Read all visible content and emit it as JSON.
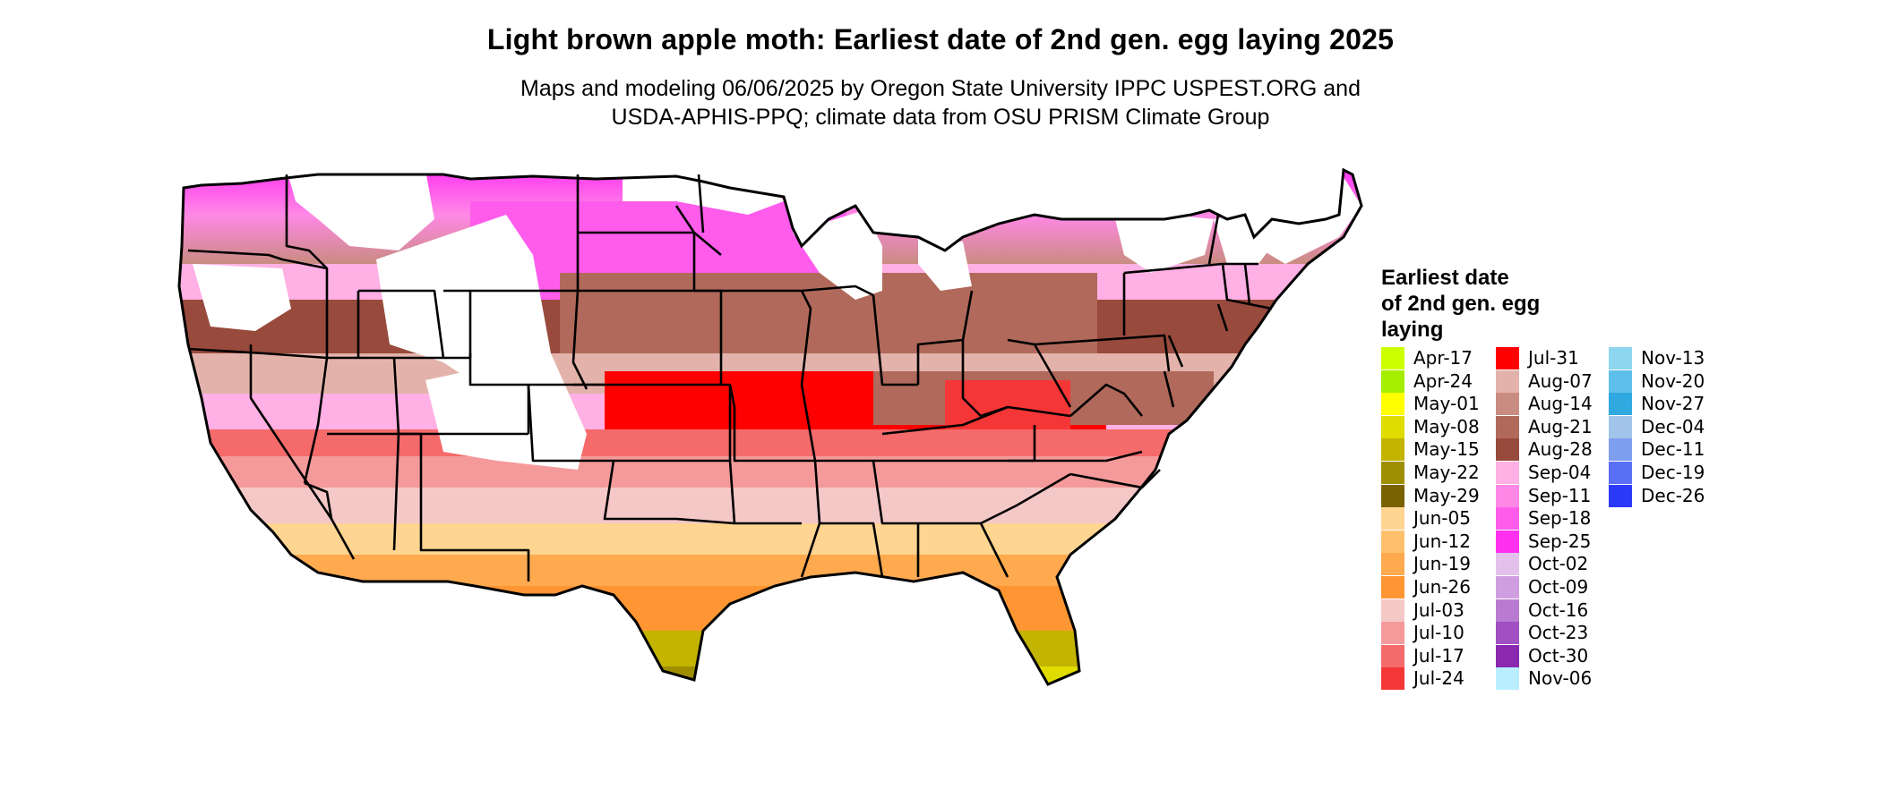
{
  "title": "Light brown apple moth: Earliest date of 2nd gen. egg laying 2025",
  "subtitle_line1": "Maps and modeling 06/06/2025 by Oregon State University IPPC USPEST.ORG and",
  "subtitle_line2": "USDA-APHIS-PPQ; climate data from OSU PRISM Climate Group",
  "legend": {
    "title_lines": [
      "Earliest date",
      "of 2nd gen. egg",
      "laying"
    ],
    "entries": [
      {
        "label": "Apr-17",
        "color": "#ccff00"
      },
      {
        "label": "Apr-24",
        "color": "#a6ee00"
      },
      {
        "label": "May-01",
        "color": "#ffff00"
      },
      {
        "label": "May-08",
        "color": "#e0dc00"
      },
      {
        "label": "May-15",
        "color": "#c2b400"
      },
      {
        "label": "May-22",
        "color": "#9e8e00"
      },
      {
        "label": "May-29",
        "color": "#7a6200"
      },
      {
        "label": "Jun-05",
        "color": "#ffd591"
      },
      {
        "label": "Jun-12",
        "color": "#ffc06e"
      },
      {
        "label": "Jun-19",
        "color": "#ffaa4f"
      },
      {
        "label": "Jun-26",
        "color": "#ff9633"
      },
      {
        "label": "Jul-03",
        "color": "#f5c8c8"
      },
      {
        "label": "Jul-10",
        "color": "#f59a9a"
      },
      {
        "label": "Jul-17",
        "color": "#f56a6a"
      },
      {
        "label": "Jul-24",
        "color": "#f53636"
      },
      {
        "label": "Jul-31",
        "color": "#ff0000"
      },
      {
        "label": "Aug-07",
        "color": "#e3b3ab"
      },
      {
        "label": "Aug-14",
        "color": "#c98c80"
      },
      {
        "label": "Aug-21",
        "color": "#b0695b"
      },
      {
        "label": "Aug-28",
        "color": "#984a3c"
      },
      {
        "label": "Sep-04",
        "color": "#ffb0e4"
      },
      {
        "label": "Sep-11",
        "color": "#ff88e6"
      },
      {
        "label": "Sep-18",
        "color": "#ff5cec"
      },
      {
        "label": "Sep-25",
        "color": "#ff30f0"
      },
      {
        "label": "Oct-02",
        "color": "#e4c0ec"
      },
      {
        "label": "Oct-09",
        "color": "#cf9ee0"
      },
      {
        "label": "Oct-16",
        "color": "#b97ad2"
      },
      {
        "label": "Oct-23",
        "color": "#a050c2"
      },
      {
        "label": "Oct-30",
        "color": "#8a28b0"
      },
      {
        "label": "Nov-06",
        "color": "#b8eeff"
      },
      {
        "label": "Nov-13",
        "color": "#8ed6f0"
      },
      {
        "label": "Nov-20",
        "color": "#5ec0ea"
      },
      {
        "label": "Nov-27",
        "color": "#30a8e0"
      },
      {
        "label": "Dec-04",
        "color": "#a2c4ea"
      },
      {
        "label": "Dec-11",
        "color": "#7e9ef0"
      },
      {
        "label": "Dec-19",
        "color": "#5a70f4"
      },
      {
        "label": "Dec-26",
        "color": "#2a3af8"
      }
    ]
  }
}
